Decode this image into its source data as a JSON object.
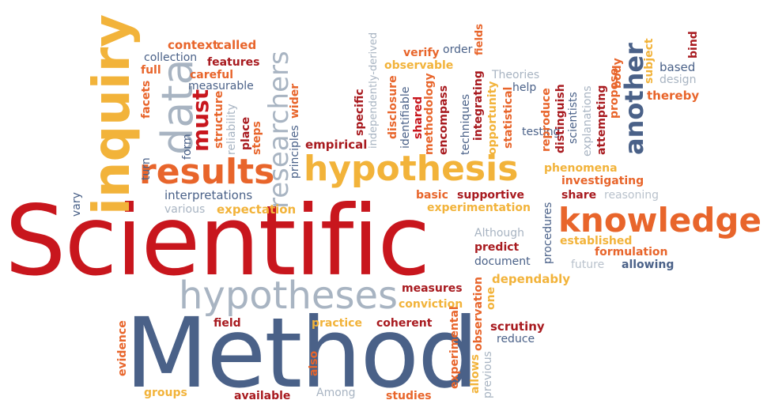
{
  "words": {
    "scientific": "Scientific",
    "method": "Method",
    "hypotheses": "hypotheses",
    "hypothesis": "hypothesis",
    "knowledge": "knowledge",
    "inquiry": "inquiry",
    "data": "data",
    "results": "results",
    "researchers": "researchers",
    "another": "another",
    "must": "must",
    "context": "context",
    "called": "called",
    "collection": "collection",
    "features": "features",
    "full": "full",
    "careful": "careful",
    "measurable": "measurable",
    "facets": "facets",
    "form": "form",
    "turn": "turn",
    "structure": "structure",
    "reliability": "reliability",
    "place": "place",
    "steps": "steps",
    "principles": "principles",
    "wider": "wider",
    "interpretations": "interpretations",
    "various": "various",
    "expectation": "expectation",
    "vary": "vary",
    "empirical": "empirical",
    "specific": "specific",
    "independently_derived": "independently-derived",
    "disclosure": "disclosure",
    "identifiable": "identifiable",
    "shared": "shared",
    "methodology": "methodology",
    "encompass": "encompass",
    "techniques": "techniques",
    "integrating": "integrating",
    "opportunity": "opportunity",
    "statistical": "statistical",
    "testing": "testing",
    "verify": "verify",
    "order": "order",
    "fields": "fields",
    "observable": "observable",
    "theories": "Theories",
    "help": "help",
    "reproduce": "reproduce",
    "distinguish": "distinguish",
    "scientists": "scientists",
    "explanations": "explanations",
    "attempting": "attempting",
    "propose": "propose",
    "body": "body",
    "subject": "subject",
    "based": "based",
    "design": "design",
    "bind": "bind",
    "thereby": "thereby",
    "phenomena": "phenomena",
    "investigating": "investigating",
    "share": "share",
    "reasoning": "reasoning",
    "basic": "basic",
    "supportive": "supportive",
    "experimentation": "experimentation",
    "although": "Although",
    "predict": "predict",
    "document": "document",
    "procedures": "procedures",
    "established": "established",
    "formulation": "formulation",
    "future": "future",
    "allowing": "allowing",
    "dependably": "dependably",
    "measures": "measures",
    "conviction": "conviction",
    "observation": "observation",
    "one": "one",
    "field": "field",
    "practice": "practice",
    "coherent": "coherent",
    "scrutiny": "scrutiny",
    "reduce": "reduce",
    "evidence": "evidence",
    "also": "also",
    "experimental": "experimental",
    "allows": "allows",
    "previous": "previous",
    "groups": "groups",
    "available": "available",
    "among": "Among",
    "studies": "studies"
  },
  "colors": {
    "red": "#c8161d",
    "dark_red": "#a81a1f",
    "orange": "#e8652b",
    "gold": "#f2b33a",
    "blue": "#4a6188",
    "grey": "#a8b4c2",
    "background": "#ffffff"
  }
}
